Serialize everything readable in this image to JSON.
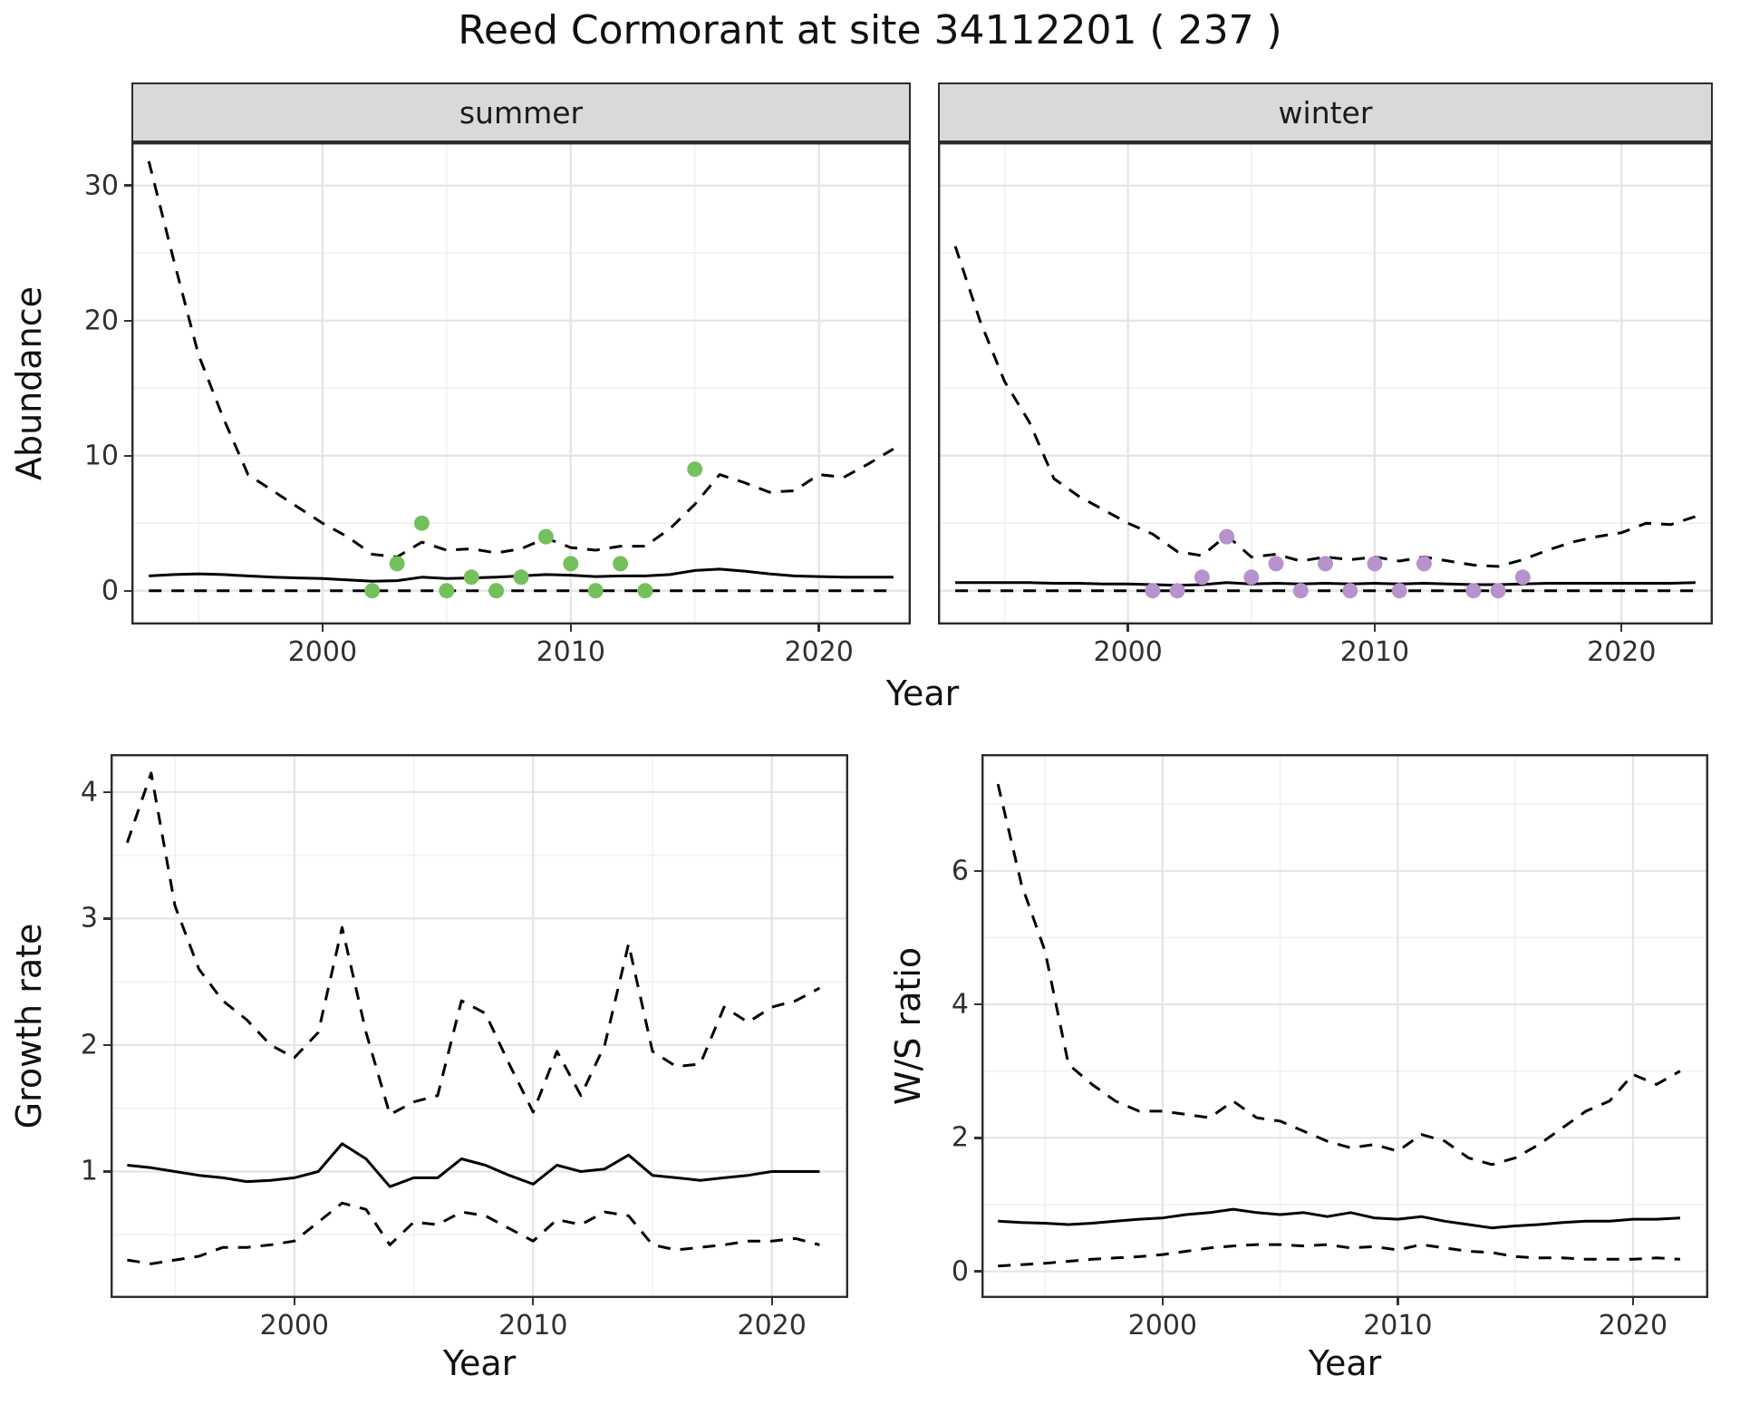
{
  "title": "Reed Cormorant at site 34112201 ( 237 )",
  "colors": {
    "summer_points": "#74c05c",
    "winter_points": "#b793cd",
    "line": "#000000",
    "grid_major": "#e4e4e4",
    "grid_minor": "#f1f1f1",
    "panel_border": "#2b2b2b",
    "strip_bg": "#d9d9d9"
  },
  "chart_data": [
    {
      "type": "line",
      "title": "summer",
      "ylabel": "Abundance",
      "xlabel": "Year",
      "xlim": [
        1992.3,
        2023.7
      ],
      "ylim": [
        -2.5,
        33.2
      ],
      "xticks": [
        2000,
        2010,
        2020
      ],
      "xticks_minor": [
        1995,
        2005,
        2015
      ],
      "yticks": [
        0,
        10,
        20,
        30
      ],
      "yticks_minor": [
        5,
        15,
        25
      ],
      "grid": true,
      "legend": "none",
      "x": [
        1993,
        1994,
        1995,
        1996,
        1997,
        1998,
        1999,
        2000,
        2001,
        2002,
        2003,
        2004,
        2005,
        2006,
        2007,
        2008,
        2009,
        2010,
        2011,
        2012,
        2013,
        2014,
        2015,
        2016,
        2017,
        2018,
        2019,
        2020,
        2021,
        2022,
        2023
      ],
      "series": [
        {
          "name": "upper_95ci",
          "style": "dashed",
          "values": [
            31.8,
            24.5,
            17.5,
            12.8,
            8.6,
            7.4,
            6.2,
            5.0,
            4.0,
            2.7,
            2.5,
            3.6,
            3.0,
            3.1,
            2.8,
            3.1,
            3.9,
            3.2,
            3.0,
            3.3,
            3.3,
            4.6,
            6.4,
            8.6,
            8.0,
            7.3,
            7.4,
            8.6,
            8.4,
            9.4,
            10.5
          ]
        },
        {
          "name": "median",
          "style": "solid",
          "values": [
            1.1,
            1.2,
            1.25,
            1.2,
            1.1,
            1.0,
            0.95,
            0.9,
            0.8,
            0.7,
            0.75,
            1.0,
            0.9,
            0.95,
            1.0,
            1.1,
            1.2,
            1.15,
            1.05,
            1.1,
            1.1,
            1.2,
            1.5,
            1.6,
            1.45,
            1.25,
            1.1,
            1.05,
            1.0,
            1.0,
            1.0
          ]
        },
        {
          "name": "lower_95ci",
          "style": "dashed",
          "values": [
            0,
            0,
            0,
            0,
            0,
            0,
            0,
            0,
            0,
            0,
            0,
            0,
            0,
            0,
            0,
            0,
            0,
            0,
            0,
            0,
            0,
            0,
            0,
            0,
            0,
            0,
            0,
            0,
            0,
            0,
            0
          ]
        }
      ],
      "points": {
        "name": "observed_counts",
        "color_key": "summer_points",
        "x": [
          2002,
          2003,
          2004,
          2005,
          2006,
          2007,
          2008,
          2009,
          2010,
          2011,
          2012,
          2013,
          2015
        ],
        "y": [
          0,
          2,
          5,
          0,
          1,
          0,
          1,
          4,
          2,
          0,
          2,
          0,
          9
        ]
      }
    },
    {
      "type": "line",
      "title": "winter",
      "ylabel": "Abundance",
      "xlabel": "Year",
      "xlim": [
        1992.3,
        2023.7
      ],
      "ylim": [
        -2.5,
        33.2
      ],
      "xticks": [
        2000,
        2010,
        2020
      ],
      "xticks_minor": [
        1995,
        2005,
        2015
      ],
      "yticks": [
        0,
        10,
        20,
        30
      ],
      "yticks_minor": [
        5,
        15,
        25
      ],
      "grid": true,
      "legend": "none",
      "x": [
        1993,
        1994,
        1995,
        1996,
        1997,
        1998,
        1999,
        2000,
        2001,
        2002,
        2003,
        2004,
        2005,
        2006,
        2007,
        2008,
        2009,
        2010,
        2011,
        2012,
        2013,
        2014,
        2015,
        2016,
        2017,
        2018,
        2019,
        2020,
        2021,
        2022,
        2023
      ],
      "series": [
        {
          "name": "upper_95ci",
          "style": "dashed",
          "values": [
            25.5,
            20.0,
            15.5,
            12.5,
            8.3,
            7.0,
            6.0,
            5.0,
            4.2,
            2.9,
            2.6,
            4.1,
            2.5,
            2.7,
            2.2,
            2.5,
            2.3,
            2.5,
            2.2,
            2.5,
            2.2,
            1.9,
            1.8,
            2.3,
            3.0,
            3.6,
            4.0,
            4.3,
            5.0,
            4.9,
            5.5
          ]
        },
        {
          "name": "median",
          "style": "solid",
          "values": [
            0.6,
            0.6,
            0.6,
            0.6,
            0.55,
            0.55,
            0.5,
            0.5,
            0.45,
            0.4,
            0.45,
            0.6,
            0.5,
            0.55,
            0.5,
            0.55,
            0.5,
            0.55,
            0.5,
            0.55,
            0.5,
            0.45,
            0.45,
            0.5,
            0.55,
            0.55,
            0.55,
            0.55,
            0.55,
            0.55,
            0.6
          ]
        },
        {
          "name": "lower_95ci",
          "style": "dashed",
          "values": [
            0,
            0,
            0,
            0,
            0,
            0,
            0,
            0,
            0,
            0,
            0,
            0,
            0,
            0,
            0,
            0,
            0,
            0,
            0,
            0,
            0,
            0,
            0,
            0,
            0,
            0,
            0,
            0,
            0,
            0,
            0
          ]
        }
      ],
      "points": {
        "name": "observed_counts",
        "color_key": "winter_points",
        "x": [
          2001,
          2002,
          2003,
          2004,
          2005,
          2006,
          2007,
          2008,
          2009,
          2010,
          2011,
          2012,
          2014,
          2015,
          2016
        ],
        "y": [
          0,
          0,
          1,
          4,
          1,
          2,
          0,
          2,
          0,
          2,
          0,
          2,
          0,
          0,
          1
        ]
      }
    },
    {
      "type": "line",
      "title": "Growth rate",
      "ylabel": "Growth rate",
      "xlabel": "Year",
      "xlim": [
        1992.3,
        2023.2
      ],
      "ylim": [
        0,
        4.3
      ],
      "xticks": [
        2000,
        2010,
        2020
      ],
      "xticks_minor": [
        1995,
        2005,
        2015
      ],
      "yticks": [
        1,
        2,
        3,
        4
      ],
      "yticks_minor": [
        0.5,
        1.5,
        2.5,
        3.5
      ],
      "grid": true,
      "legend": "none",
      "x": [
        1993,
        1994,
        1995,
        1996,
        1997,
        1998,
        1999,
        2000,
        2001,
        2002,
        2003,
        2004,
        2005,
        2006,
        2007,
        2008,
        2009,
        2010,
        2011,
        2012,
        2013,
        2014,
        2015,
        2016,
        2017,
        2018,
        2019,
        2020,
        2021,
        2022
      ],
      "series": [
        {
          "name": "upper_95ci",
          "style": "dashed",
          "values": [
            3.6,
            4.15,
            3.1,
            2.6,
            2.35,
            2.2,
            2.0,
            1.9,
            2.1,
            2.93,
            2.1,
            1.45,
            1.55,
            1.6,
            2.35,
            2.25,
            1.85,
            1.47,
            1.95,
            1.6,
            2.0,
            2.8,
            1.95,
            1.83,
            1.85,
            2.3,
            2.18,
            2.3,
            2.35,
            2.45
          ]
        },
        {
          "name": "median",
          "style": "solid",
          "values": [
            1.05,
            1.03,
            1.0,
            0.97,
            0.95,
            0.92,
            0.93,
            0.95,
            1.0,
            1.22,
            1.1,
            0.88,
            0.95,
            0.95,
            1.1,
            1.05,
            0.97,
            0.9,
            1.05,
            1.0,
            1.02,
            1.13,
            0.97,
            0.95,
            0.93,
            0.95,
            0.97,
            1.0,
            1.0,
            1.0
          ]
        },
        {
          "name": "lower_95ci",
          "style": "dashed",
          "values": [
            0.3,
            0.27,
            0.3,
            0.33,
            0.4,
            0.4,
            0.42,
            0.45,
            0.6,
            0.75,
            0.7,
            0.42,
            0.6,
            0.58,
            0.68,
            0.65,
            0.55,
            0.45,
            0.62,
            0.58,
            0.68,
            0.65,
            0.42,
            0.38,
            0.4,
            0.42,
            0.45,
            0.45,
            0.47,
            0.42
          ]
        }
      ]
    },
    {
      "type": "line",
      "title": "W/S ratio",
      "ylabel": "W/S ratio",
      "xlabel": "Year",
      "xlim": [
        1992.3,
        2023.2
      ],
      "ylim": [
        -0.4,
        7.75
      ],
      "xticks": [
        2000,
        2010,
        2020
      ],
      "xticks_minor": [
        1995,
        2005,
        2015
      ],
      "yticks": [
        0,
        2,
        4,
        6
      ],
      "yticks_minor": [
        1,
        3,
        5,
        7
      ],
      "grid": true,
      "legend": "none",
      "x": [
        1993,
        1994,
        1995,
        1996,
        1997,
        1998,
        1999,
        2000,
        2001,
        2002,
        2003,
        2004,
        2005,
        2006,
        2007,
        2008,
        2009,
        2010,
        2011,
        2012,
        2013,
        2014,
        2015,
        2016,
        2017,
        2018,
        2019,
        2020,
        2021,
        2022
      ],
      "series": [
        {
          "name": "upper_95ci",
          "style": "dashed",
          "values": [
            7.3,
            5.8,
            4.8,
            3.1,
            2.8,
            2.55,
            2.4,
            2.4,
            2.35,
            2.3,
            2.55,
            2.3,
            2.25,
            2.1,
            1.95,
            1.85,
            1.9,
            1.8,
            2.05,
            1.95,
            1.7,
            1.6,
            1.7,
            1.9,
            2.15,
            2.4,
            2.55,
            2.95,
            2.8,
            3.0
          ]
        },
        {
          "name": "median",
          "style": "solid",
          "values": [
            0.75,
            0.73,
            0.72,
            0.7,
            0.72,
            0.75,
            0.78,
            0.8,
            0.85,
            0.88,
            0.93,
            0.88,
            0.85,
            0.88,
            0.82,
            0.88,
            0.8,
            0.78,
            0.82,
            0.75,
            0.7,
            0.65,
            0.68,
            0.7,
            0.73,
            0.75,
            0.75,
            0.78,
            0.78,
            0.8
          ]
        },
        {
          "name": "lower_95ci",
          "style": "dashed",
          "values": [
            0.08,
            0.1,
            0.12,
            0.15,
            0.18,
            0.2,
            0.22,
            0.25,
            0.3,
            0.35,
            0.38,
            0.4,
            0.4,
            0.38,
            0.4,
            0.35,
            0.37,
            0.32,
            0.4,
            0.35,
            0.3,
            0.28,
            0.22,
            0.2,
            0.2,
            0.18,
            0.18,
            0.18,
            0.2,
            0.18
          ]
        }
      ]
    }
  ]
}
